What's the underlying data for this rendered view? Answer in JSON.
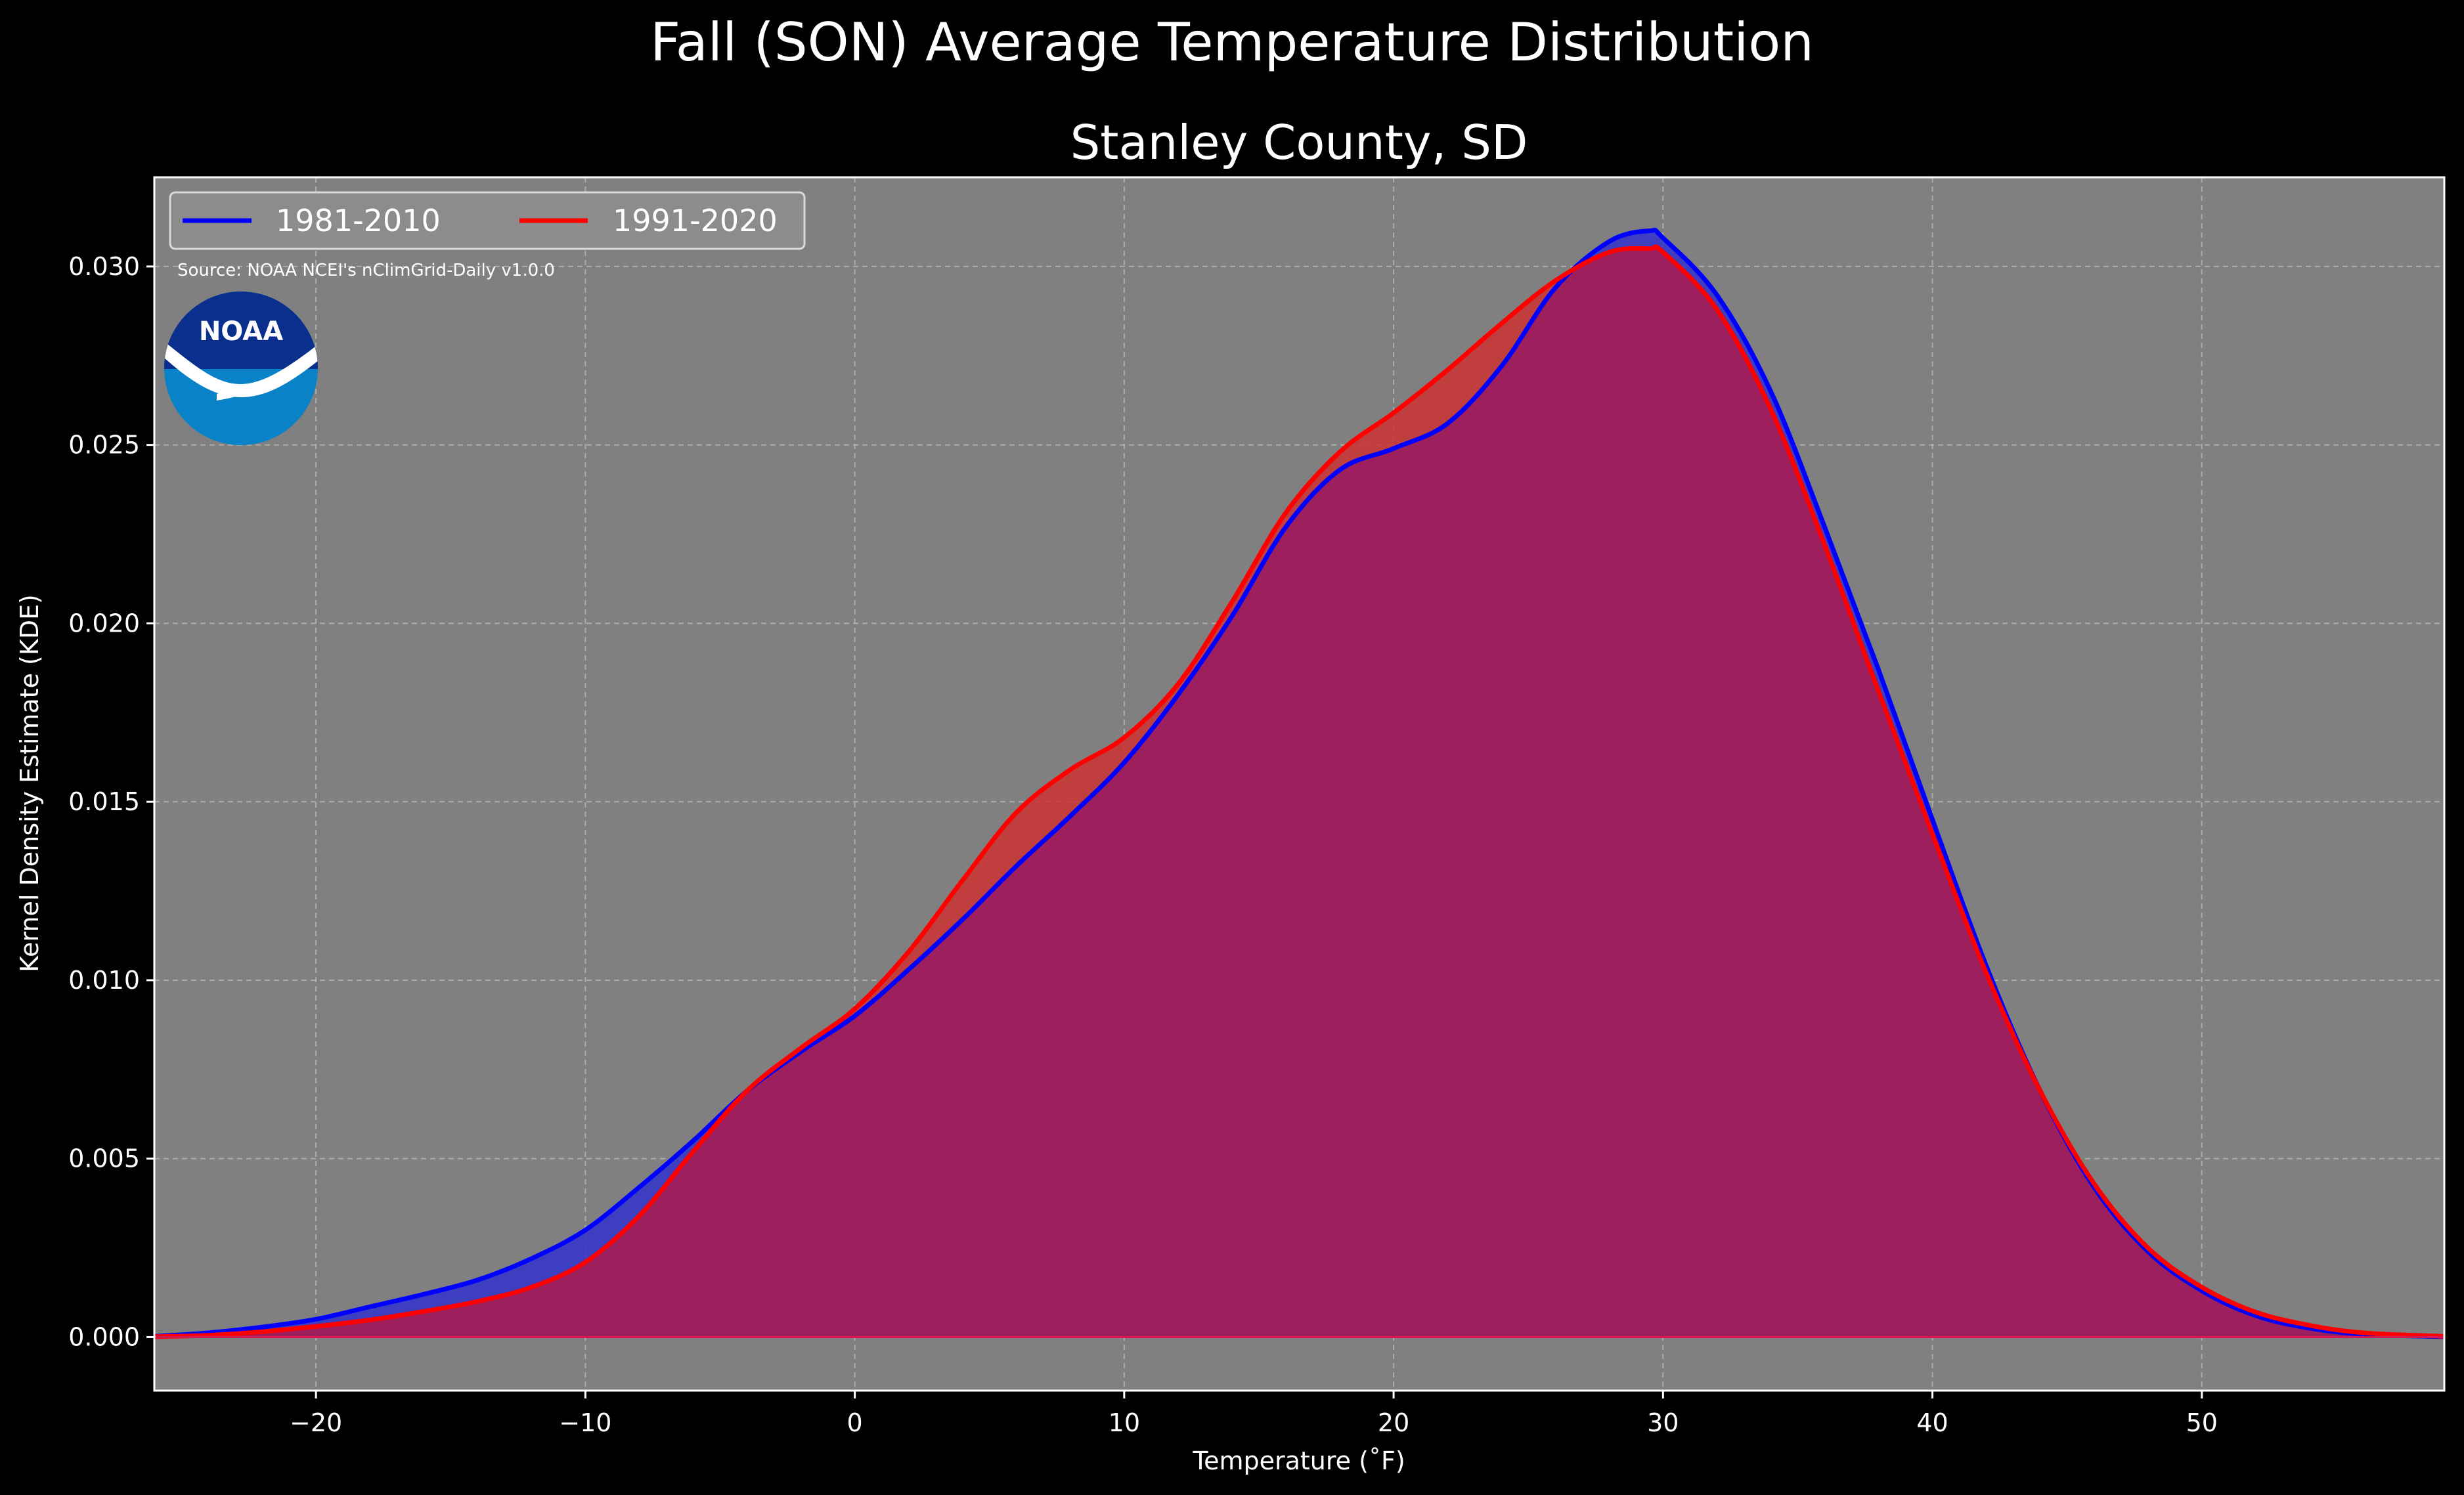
{
  "chart_data": {
    "type": "area",
    "title": "Fall (SON) Average Temperature Distribution",
    "subtitle": "Stanley County, SD",
    "xlabel": "Temperature ($^\\circ$F)",
    "xlabel_display": "Temperature (˚F)",
    "ylabel": "Kernel Density Estimate (KDE)",
    "xlim": [
      -26,
      59
    ],
    "ylim": [
      -0.0015,
      0.0325
    ],
    "xticks": [
      -20,
      -10,
      0,
      10,
      20,
      30,
      40,
      50
    ],
    "xtick_labels": [
      "−20",
      "−10",
      "0",
      "10",
      "20",
      "30",
      "40",
      "50"
    ],
    "yticks": [
      0.0,
      0.005,
      0.01,
      0.015,
      0.02,
      0.025,
      0.03
    ],
    "ytick_labels": [
      "0.000",
      "0.005",
      "0.010",
      "0.015",
      "0.020",
      "0.025",
      "0.030"
    ],
    "grid": true,
    "legend_position": "top-left",
    "source_note": "Source: NOAA NCEI's nClimGrid-Daily v1.0.0",
    "logo_text": "NOAA",
    "background_color": "#000000",
    "plot_background_color": "#808080",
    "x": [
      -26,
      -24,
      -22,
      -20,
      -18,
      -16,
      -14,
      -12,
      -10,
      -8,
      -6,
      -4,
      -2,
      0,
      2,
      4,
      6,
      8,
      10,
      12,
      14,
      16,
      18,
      20,
      22,
      24,
      26,
      28,
      29.5,
      30,
      32,
      34,
      36,
      38,
      40,
      42,
      44,
      46,
      48,
      50,
      52,
      54,
      56,
      59
    ],
    "series": [
      {
        "name": "1981-2010",
        "color": "#0000ff",
        "fill_color": "#3333cc",
        "values": [
          2e-05,
          0.00012,
          0.00028,
          0.0005,
          0.00085,
          0.0012,
          0.0016,
          0.0022,
          0.003,
          0.0042,
          0.0055,
          0.0069,
          0.008,
          0.009,
          0.0103,
          0.0117,
          0.0132,
          0.0146,
          0.0161,
          0.018,
          0.0202,
          0.0227,
          0.0243,
          0.0249,
          0.0256,
          0.0272,
          0.0294,
          0.0307,
          0.031,
          0.0308,
          0.0292,
          0.0265,
          0.0227,
          0.0187,
          0.0145,
          0.0104,
          0.0069,
          0.0042,
          0.0024,
          0.0013,
          0.0006,
          0.00025,
          8e-05,
          1e-05
        ]
      },
      {
        "name": "1991-2020",
        "color": "#ff0000",
        "fill_color": "#cc3333",
        "values": [
          1e-05,
          5e-05,
          0.00015,
          0.0003,
          0.00048,
          0.00072,
          0.001,
          0.0014,
          0.0021,
          0.0034,
          0.0052,
          0.0069,
          0.0081,
          0.0092,
          0.0108,
          0.0128,
          0.0147,
          0.0159,
          0.0168,
          0.0183,
          0.0206,
          0.0231,
          0.0248,
          0.0259,
          0.0271,
          0.0284,
          0.0296,
          0.0304,
          0.0305,
          0.0304,
          0.0288,
          0.026,
          0.0222,
          0.0181,
          0.0141,
          0.0102,
          0.0069,
          0.0043,
          0.0025,
          0.0014,
          0.0007,
          0.00033,
          0.00012,
          2e-05
        ]
      }
    ],
    "overlap_fill_color": "#9e1f5e"
  }
}
